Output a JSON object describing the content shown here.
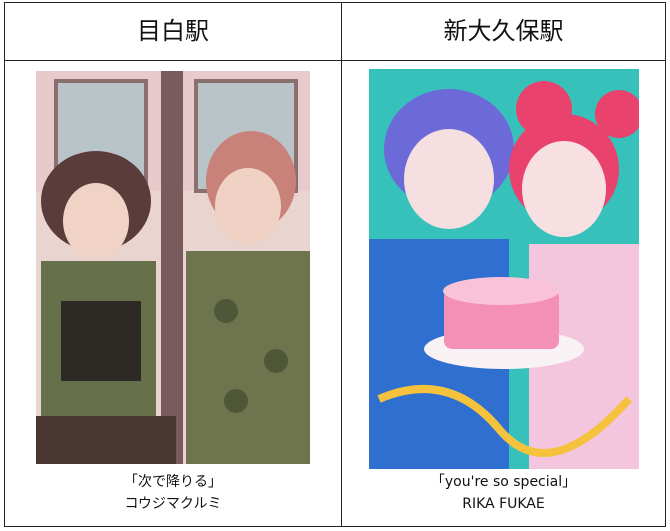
{
  "table": {
    "headers": [
      "目白駅",
      "新大久保駅"
    ],
    "cells": [
      {
        "caption": [
          "「次で降りる」",
          "コウジマクルミ"
        ]
      },
      {
        "caption": [
          "「you're so special」",
          "RIKA FUKAE"
        ]
      }
    ]
  }
}
